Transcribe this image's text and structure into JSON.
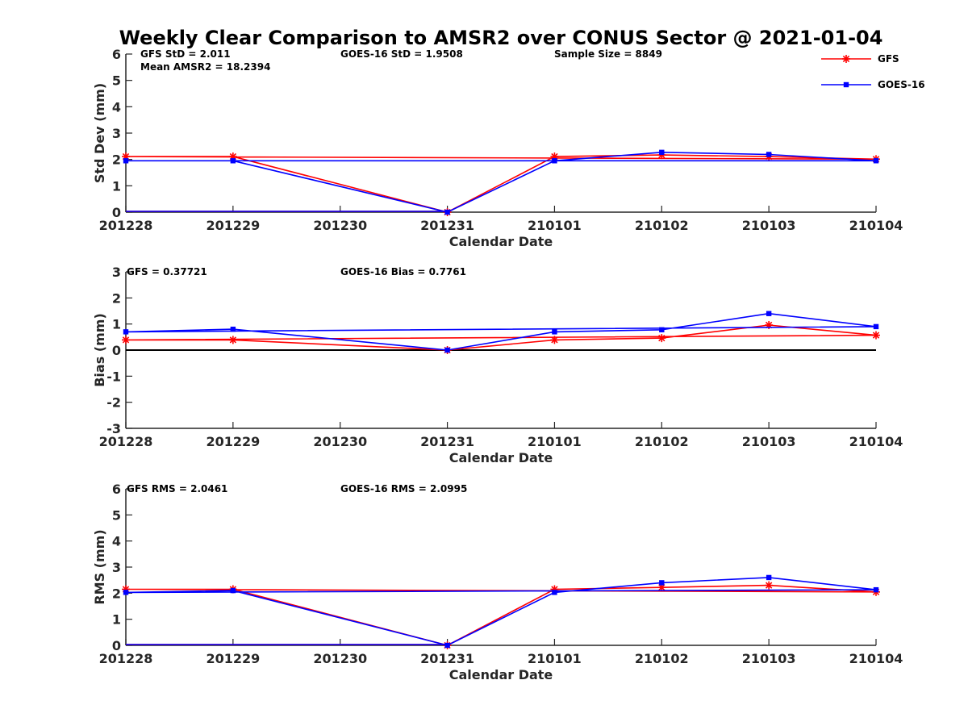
{
  "chart_data": {
    "type": "line",
    "title": "Weekly Clear Comparison to AMSR2 over CONUS Sector @ 2021-01-04",
    "legend": {
      "placement": "top-right",
      "entries": [
        {
          "name": "GFS",
          "color": "#ff0000",
          "marker": "asterisk"
        },
        {
          "name": "GOES-16",
          "color": "#0000ff",
          "marker": "square"
        }
      ]
    },
    "x_ticks": [
      "201228",
      "201229",
      "201230",
      "201231",
      "210101",
      "210102",
      "210103",
      "210104"
    ],
    "panels": [
      {
        "id": "std",
        "ylabel": "Std Dev (mm)",
        "xlabel": "Calendar Date",
        "ylim": [
          0,
          6
        ],
        "yticks": [
          0,
          1,
          2,
          3,
          4,
          5,
          6
        ],
        "annotations": [
          "GFS StD = 2.011",
          "GOES-16 StD = 1.9508",
          "Sample Size = 8849",
          "Mean AMSR2 = 18.2394"
        ],
        "series": [
          {
            "name": "GFS",
            "color": "#ff0000",
            "marker": "asterisk",
            "x": [
              0,
              1,
              3,
              4,
              5,
              6,
              7
            ],
            "y": [
              2.11,
              2.11,
              0,
              2.11,
              2.17,
              2.11,
              2.011
            ]
          },
          {
            "name": "GOES-16",
            "color": "#0000ff",
            "marker": "square",
            "x": [
              0,
              1,
              3,
              4,
              5,
              6,
              7
            ],
            "y": [
              1.95,
              1.95,
              0,
              1.95,
              2.27,
              2.19,
              1.9508
            ]
          }
        ]
      },
      {
        "id": "bias",
        "ylabel": "Bias (mm)",
        "xlabel": "Calendar Date",
        "ylim": [
          -3,
          3
        ],
        "yticks": [
          -3,
          -2,
          -1,
          0,
          1,
          2,
          3
        ],
        "zero_line": true,
        "annotations": [
          "GFS = 0.37721",
          "GOES-16 Bias  = 0.7761"
        ],
        "series": [
          {
            "name": "GFS",
            "color": "#ff0000",
            "marker": "asterisk",
            "x": [
              0,
              1,
              3,
              4,
              5,
              6,
              7
            ],
            "y": [
              0.39,
              0.39,
              0,
              0.39,
              0.46,
              0.96,
              0.57
            ]
          },
          {
            "name": "GOES-16",
            "color": "#0000ff",
            "marker": "square",
            "x": [
              0,
              1,
              3,
              4,
              5,
              6,
              7
            ],
            "y": [
              0.7,
              0.8,
              0,
              0.7,
              0.78,
              1.4,
              0.9
            ]
          }
        ]
      },
      {
        "id": "rms",
        "ylabel": "RMS (mm)",
        "xlabel": "Calendar Date",
        "ylim": [
          0,
          6
        ],
        "yticks": [
          0,
          1,
          2,
          3,
          4,
          5,
          6
        ],
        "annotations": [
          "GFS RMS = 2.0461",
          "GOES-16 RMS = 2.0995"
        ],
        "series": [
          {
            "name": "GFS",
            "color": "#ff0000",
            "marker": "asterisk",
            "x": [
              0,
              1,
              3,
              4,
              5,
              6,
              7
            ],
            "y": [
              2.15,
              2.15,
              0,
              2.15,
              2.22,
              2.3,
              2.0461
            ]
          },
          {
            "name": "GOES-16",
            "color": "#0000ff",
            "marker": "square",
            "x": [
              0,
              1,
              3,
              4,
              5,
              6,
              7
            ],
            "y": [
              2.03,
              2.1,
              0,
              2.03,
              2.4,
              2.6,
              2.13
            ]
          }
        ]
      }
    ]
  }
}
